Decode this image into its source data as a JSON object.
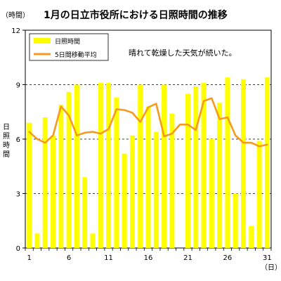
{
  "chart_data": {
    "type": "bar",
    "title": "1月の日立市役所における日照時間の推移",
    "ylabel_unit": "（時間）",
    "ylabel": "日照時間",
    "xlabel_unit": "（日）",
    "ylim": [
      0,
      12
    ],
    "yticks": [
      0,
      3,
      6,
      9,
      12
    ],
    "xtick_days": [
      1,
      6,
      11,
      16,
      21,
      26,
      31
    ],
    "x": [
      1,
      2,
      3,
      4,
      5,
      6,
      7,
      8,
      9,
      10,
      11,
      12,
      13,
      14,
      15,
      16,
      17,
      18,
      19,
      20,
      21,
      22,
      23,
      24,
      25,
      26,
      27,
      28,
      29,
      30,
      31
    ],
    "series": [
      {
        "name": "日照時間",
        "type": "bar",
        "color": "#ffff00",
        "values": [
          6.9,
          0.8,
          7.2,
          6.2,
          7.9,
          8.6,
          9.0,
          3.9,
          0.8,
          9.1,
          9.1,
          8.3,
          5.2,
          6.2,
          9.0,
          7.8,
          6.4,
          9.0,
          7.4,
          0.0,
          8.5,
          8.9,
          9.1,
          6.0,
          8.0,
          9.4,
          3.0,
          9.3,
          1.2,
          5.9,
          9.4
        ]
      },
      {
        "name": "5日間移動平均",
        "type": "line",
        "color": "#f59a1e",
        "values": [
          6.4,
          6.0,
          5.8,
          6.2,
          7.8,
          7.3,
          6.2,
          6.35,
          6.4,
          6.3,
          6.55,
          7.65,
          7.6,
          7.45,
          6.95,
          7.75,
          7.95,
          6.15,
          6.3,
          6.8,
          6.8,
          6.5,
          8.1,
          8.25,
          7.1,
          7.2,
          6.2,
          5.8,
          5.8,
          5.6,
          5.7
        ]
      }
    ],
    "annotation": "晴れて乾燥した天気が続いた。",
    "grid": "dashed-horizontal-at-yticks",
    "legend_position": "top-left"
  }
}
